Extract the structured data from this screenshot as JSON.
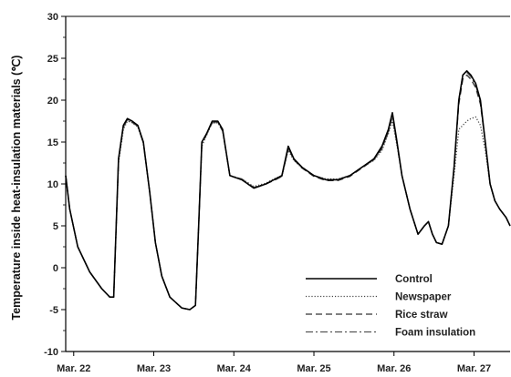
{
  "chart_data": {
    "type": "line",
    "title": "",
    "ylabel": "Temperature inside heat-insulation materials (℃)",
    "xlabel": "",
    "ylim": [
      -10,
      30
    ],
    "yticks": [
      -10,
      -5,
      0,
      5,
      10,
      15,
      20,
      25,
      30
    ],
    "xlim": [
      0,
      5.55
    ],
    "xtick_labels": [
      "Mar. 22",
      "Mar. 23",
      "Mar. 24",
      "Mar. 25",
      "Mar. 26",
      "Mar. 27"
    ],
    "xtick_positions": [
      0.1,
      1.1,
      2.1,
      3.1,
      4.1,
      5.1
    ],
    "grid": false,
    "legend_position": "bottom-right",
    "series": [
      {
        "name": "Control",
        "color": "#000000",
        "dash": "solid",
        "x": [
          0,
          0.05,
          0.15,
          0.3,
          0.45,
          0.55,
          0.6,
          0.66,
          0.72,
          0.77,
          0.83,
          0.9,
          0.97,
          1.05,
          1.12,
          1.2,
          1.3,
          1.45,
          1.55,
          1.62,
          1.66,
          1.7,
          1.76,
          1.83,
          1.9,
          1.96,
          2.05,
          2.2,
          2.35,
          2.5,
          2.6,
          2.7,
          2.78,
          2.85,
          2.95,
          3.1,
          3.25,
          3.4,
          3.55,
          3.7,
          3.85,
          3.95,
          4.03,
          4.08,
          4.13,
          4.2,
          4.3,
          4.4,
          4.48,
          4.53,
          4.58,
          4.63,
          4.7,
          4.78,
          4.85,
          4.91,
          4.96,
          5.01,
          5.06,
          5.12,
          5.18,
          5.24,
          5.3,
          5.36,
          5.42,
          5.5,
          5.55
        ],
        "y": [
          11,
          7,
          2.5,
          -0.5,
          -2.5,
          -3.5,
          -3.5,
          13,
          17,
          17.8,
          17.5,
          17,
          15,
          9,
          3,
          -1,
          -3.5,
          -4.8,
          -5,
          -4.5,
          5,
          15,
          16,
          17.5,
          17.5,
          16.5,
          11,
          10.5,
          9.5,
          10,
          10.5,
          11,
          14.5,
          13,
          12,
          11,
          10.5,
          10.5,
          11,
          12,
          13,
          14.5,
          16.5,
          18.5,
          15.5,
          11,
          7,
          4,
          5,
          5.5,
          4,
          3,
          2.8,
          5,
          12,
          20,
          23,
          23.5,
          23,
          22,
          20,
          15,
          10,
          8,
          7,
          6,
          5
        ]
      },
      {
        "name": "Newspaper",
        "color": "#444444",
        "dash": "dotted",
        "x": [
          0,
          0.05,
          0.15,
          0.3,
          0.45,
          0.55,
          0.6,
          0.66,
          0.72,
          0.77,
          0.83,
          0.9,
          0.97,
          1.05,
          1.12,
          1.2,
          1.3,
          1.45,
          1.55,
          1.62,
          1.66,
          1.7,
          1.76,
          1.83,
          1.9,
          1.96,
          2.05,
          2.2,
          2.35,
          2.5,
          2.6,
          2.7,
          2.78,
          2.85,
          2.95,
          3.1,
          3.25,
          3.4,
          3.55,
          3.7,
          3.85,
          3.95,
          4.03,
          4.08,
          4.13,
          4.2,
          4.3,
          4.4,
          4.48,
          4.53,
          4.58,
          4.63,
          4.7,
          4.78,
          4.85,
          4.91,
          4.96,
          5.01,
          5.06,
          5.12,
          5.18,
          5.24,
          5.3,
          5.36,
          5.42,
          5.5,
          5.55
        ],
        "y": [
          11,
          7,
          2.5,
          -0.5,
          -2.5,
          -3.5,
          -3.5,
          12.5,
          16.5,
          17.5,
          17.3,
          16.8,
          14.8,
          9,
          3,
          -1,
          -3.5,
          -4.8,
          -5,
          -4.5,
          5,
          14.5,
          15.8,
          17.3,
          17.3,
          16.3,
          11,
          10.6,
          9.7,
          10.1,
          10.6,
          11,
          14,
          12.8,
          11.9,
          11,
          10.6,
          10.6,
          11,
          12,
          12.8,
          14,
          16,
          17.5,
          15,
          11,
          7,
          4,
          5,
          5.5,
          4,
          3,
          2.8,
          5,
          11,
          16.5,
          17,
          17.5,
          17.8,
          18,
          17,
          14,
          10,
          8,
          7,
          6,
          5
        ]
      },
      {
        "name": "Rice straw",
        "color": "#333333",
        "dash": "dashed",
        "x": [
          0,
          0.05,
          0.15,
          0.3,
          0.45,
          0.55,
          0.6,
          0.66,
          0.72,
          0.77,
          0.83,
          0.9,
          0.97,
          1.05,
          1.12,
          1.2,
          1.3,
          1.45,
          1.55,
          1.62,
          1.66,
          1.7,
          1.76,
          1.83,
          1.9,
          1.96,
          2.05,
          2.2,
          2.35,
          2.5,
          2.6,
          2.7,
          2.78,
          2.85,
          2.95,
          3.1,
          3.25,
          3.4,
          3.55,
          3.7,
          3.85,
          3.95,
          4.03,
          4.08,
          4.13,
          4.2,
          4.3,
          4.4,
          4.48,
          4.53,
          4.58,
          4.63,
          4.7,
          4.78,
          4.85,
          4.91,
          4.96,
          5.01,
          5.06,
          5.12,
          5.18,
          5.24,
          5.3,
          5.36,
          5.42,
          5.5,
          5.55
        ],
        "y": [
          11,
          7,
          2.5,
          -0.5,
          -2.5,
          -3.5,
          -3.5,
          13,
          17,
          17.7,
          17.4,
          17,
          15,
          9,
          3,
          -1,
          -3.5,
          -4.8,
          -5,
          -4.5,
          5,
          15,
          16,
          17.4,
          17.4,
          16.4,
          11,
          10.5,
          9.5,
          10,
          10.4,
          10.9,
          14.3,
          12.9,
          11.9,
          10.9,
          10.4,
          10.4,
          10.9,
          11.9,
          12.9,
          14.3,
          16.3,
          18.3,
          15.3,
          11,
          7,
          4,
          5,
          5.5,
          4,
          3,
          2.8,
          5,
          12,
          19.5,
          22.5,
          23,
          22.5,
          21.5,
          19.5,
          15,
          10,
          8,
          7,
          6,
          5
        ]
      },
      {
        "name": "Foam insulation",
        "color": "#555555",
        "dash": "dash-dot",
        "x": [
          0,
          0.05,
          0.15,
          0.3,
          0.45,
          0.55,
          0.6,
          0.66,
          0.72,
          0.77,
          0.83,
          0.9,
          0.97,
          1.05,
          1.12,
          1.2,
          1.3,
          1.45,
          1.55,
          1.62,
          1.66,
          1.7,
          1.76,
          1.83,
          1.9,
          1.96,
          2.05,
          2.2,
          2.35,
          2.5,
          2.6,
          2.7,
          2.78,
          2.85,
          2.95,
          3.1,
          3.25,
          3.4,
          3.55,
          3.7,
          3.85,
          3.95,
          4.03,
          4.08,
          4.13,
          4.2,
          4.3,
          4.4,
          4.48,
          4.53,
          4.58,
          4.63,
          4.7,
          4.78,
          4.85,
          4.91,
          4.96,
          5.01,
          5.06,
          5.12,
          5.18,
          5.24,
          5.3,
          5.36,
          5.42,
          5.5,
          5.55
        ],
        "y": [
          11,
          7,
          2.5,
          -0.5,
          -2.5,
          -3.5,
          -3.5,
          12.8,
          16.8,
          17.6,
          17.3,
          16.9,
          14.9,
          9,
          3,
          -1,
          -3.5,
          -4.8,
          -5,
          -4.5,
          5,
          14.8,
          15.9,
          17.3,
          17.3,
          16.3,
          11,
          10.6,
          9.6,
          10,
          10.5,
          10.9,
          14.2,
          12.9,
          12,
          11,
          10.5,
          10.5,
          11,
          12,
          12.9,
          14.2,
          16.2,
          18,
          15.2,
          11,
          7,
          4,
          5,
          5.5,
          4,
          3,
          2.8,
          5,
          12,
          20,
          23,
          23.3,
          22.8,
          21.8,
          19.8,
          15,
          10,
          8,
          7,
          6,
          5
        ]
      }
    ]
  }
}
